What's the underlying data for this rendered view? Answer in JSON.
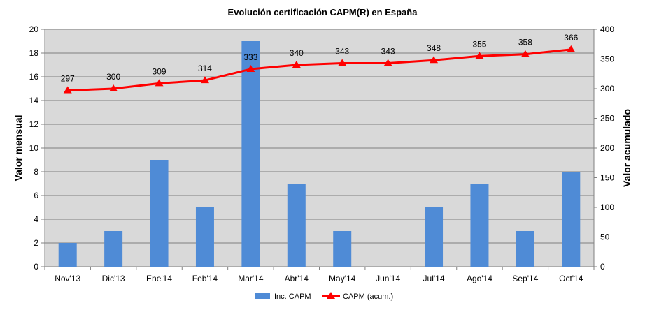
{
  "chart_data": {
    "type": "bar",
    "title": "Evolución certificación CAPM(R) en España",
    "ylabel": "Valor mensual",
    "y2label": "Valor acumulado",
    "categories": [
      "Nov'13",
      "Dic'13",
      "Ene'14",
      "Feb'14",
      "Mar'14",
      "Abr'14",
      "May'14",
      "Jun'14",
      "Jul'14",
      "Ago'14",
      "Sep'14",
      "Oct'14"
    ],
    "ylim": [
      0,
      20
    ],
    "yticks": [
      0,
      2,
      4,
      6,
      8,
      10,
      12,
      14,
      16,
      18,
      20
    ],
    "y2lim": [
      0,
      400
    ],
    "y2ticks": [
      0,
      50,
      100,
      150,
      200,
      250,
      300,
      350,
      400
    ],
    "grid": true,
    "legend": "bottom",
    "series": [
      {
        "name": "Inc. CAPM",
        "type": "bar",
        "axis": "left",
        "color": "#4f8bd6",
        "values": [
          2,
          3,
          9,
          5,
          19,
          7,
          3,
          0,
          5,
          7,
          3,
          8
        ]
      },
      {
        "name": "CAPM (acum.)",
        "type": "line",
        "axis": "right",
        "color": "#ff0000",
        "marker": "triangle",
        "values": [
          297,
          300,
          309,
          314,
          333,
          340,
          343,
          343,
          348,
          355,
          358,
          366
        ],
        "labels": [
          "297",
          "300",
          "309",
          "314",
          "333",
          "340",
          "343",
          "343",
          "348",
          "355",
          "358",
          "366"
        ]
      }
    ]
  }
}
